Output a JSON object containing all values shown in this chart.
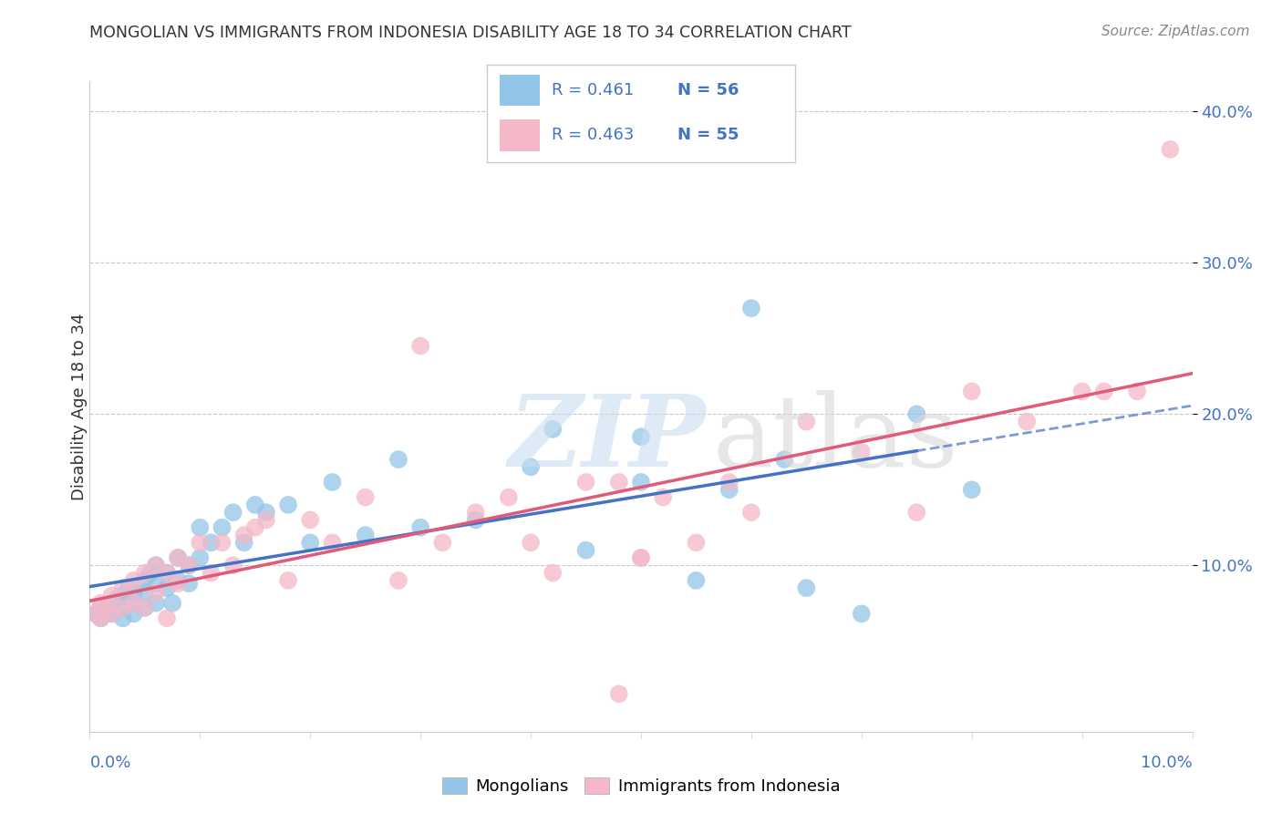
{
  "title": "MONGOLIAN VS IMMIGRANTS FROM INDONESIA DISABILITY AGE 18 TO 34 CORRELATION CHART",
  "source": "Source: ZipAtlas.com",
  "ylabel": "Disability Age 18 to 34",
  "xlim": [
    0.0,
    0.1
  ],
  "ylim": [
    -0.01,
    0.42
  ],
  "color_blue": "#92c5e8",
  "color_pink": "#f4b8c8",
  "color_blue_line": "#4472c4",
  "color_pink_line": "#e05a7a",
  "legend_blue_r": "R = 0.461",
  "legend_blue_n": "N = 56",
  "legend_pink_r": "R = 0.463",
  "legend_pink_n": "N = 55",
  "mongolians_x": [
    0.0005,
    0.001,
    0.001,
    0.0015,
    0.002,
    0.002,
    0.0025,
    0.003,
    0.003,
    0.003,
    0.0035,
    0.004,
    0.004,
    0.004,
    0.005,
    0.005,
    0.005,
    0.0055,
    0.006,
    0.006,
    0.006,
    0.007,
    0.007,
    0.0075,
    0.008,
    0.008,
    0.009,
    0.009,
    0.01,
    0.01,
    0.011,
    0.012,
    0.013,
    0.014,
    0.015,
    0.016,
    0.018,
    0.02,
    0.022,
    0.025,
    0.028,
    0.03,
    0.035,
    0.04,
    0.045,
    0.05,
    0.055,
    0.06,
    0.065,
    0.07,
    0.075,
    0.08,
    0.063,
    0.058,
    0.05,
    0.042
  ],
  "mongolians_y": [
    0.068,
    0.072,
    0.065,
    0.07,
    0.075,
    0.068,
    0.078,
    0.08,
    0.072,
    0.065,
    0.085,
    0.082,
    0.075,
    0.068,
    0.09,
    0.082,
    0.072,
    0.095,
    0.1,
    0.088,
    0.075,
    0.095,
    0.085,
    0.075,
    0.105,
    0.09,
    0.1,
    0.088,
    0.105,
    0.125,
    0.115,
    0.125,
    0.135,
    0.115,
    0.14,
    0.135,
    0.14,
    0.115,
    0.155,
    0.12,
    0.17,
    0.125,
    0.13,
    0.165,
    0.11,
    0.155,
    0.09,
    0.27,
    0.085,
    0.068,
    0.2,
    0.15,
    0.17,
    0.15,
    0.185,
    0.19
  ],
  "indonesia_x": [
    0.0005,
    0.001,
    0.001,
    0.0015,
    0.002,
    0.002,
    0.003,
    0.003,
    0.004,
    0.004,
    0.005,
    0.005,
    0.006,
    0.006,
    0.007,
    0.007,
    0.008,
    0.008,
    0.009,
    0.01,
    0.011,
    0.012,
    0.013,
    0.014,
    0.015,
    0.016,
    0.018,
    0.02,
    0.022,
    0.025,
    0.028,
    0.03,
    0.032,
    0.035,
    0.038,
    0.04,
    0.042,
    0.045,
    0.048,
    0.05,
    0.052,
    0.055,
    0.058,
    0.06,
    0.065,
    0.07,
    0.075,
    0.08,
    0.085,
    0.09,
    0.092,
    0.095,
    0.098,
    0.05,
    0.048
  ],
  "indonesia_y": [
    0.068,
    0.075,
    0.065,
    0.072,
    0.08,
    0.068,
    0.085,
    0.072,
    0.09,
    0.075,
    0.095,
    0.072,
    0.1,
    0.082,
    0.095,
    0.065,
    0.105,
    0.088,
    0.1,
    0.115,
    0.095,
    0.115,
    0.1,
    0.12,
    0.125,
    0.13,
    0.09,
    0.13,
    0.115,
    0.145,
    0.09,
    0.245,
    0.115,
    0.135,
    0.145,
    0.115,
    0.095,
    0.155,
    0.155,
    0.105,
    0.145,
    0.115,
    0.155,
    0.135,
    0.195,
    0.175,
    0.135,
    0.215,
    0.195,
    0.215,
    0.215,
    0.215,
    0.375,
    0.105,
    0.015
  ]
}
